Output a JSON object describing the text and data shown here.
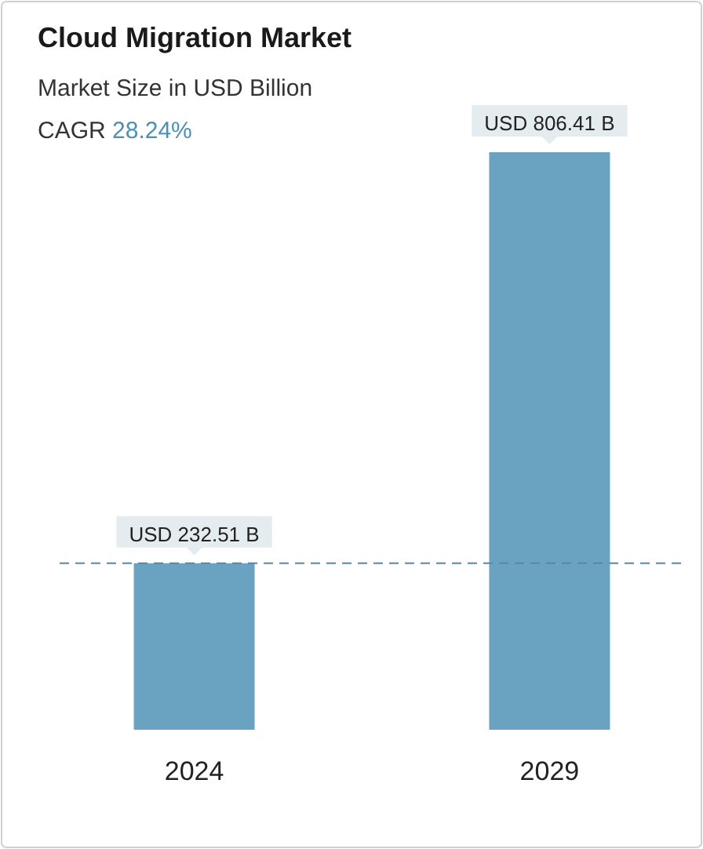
{
  "chart_data": {
    "type": "bar",
    "title": "Cloud Migration Market",
    "subtitle": "Market Size in USD Billion",
    "annotations": [
      "CAGR 28.24%"
    ],
    "categories": [
      "2024",
      "2029"
    ],
    "values": [
      232.51,
      806.41
    ],
    "value_labels": [
      "USD 232.51 B",
      "USD 806.41 B"
    ],
    "color": "#6aa3c2",
    "ref_lines": [
      {
        "axis": "y",
        "value": 232.51,
        "color": "#5b86a8",
        "line_style": "dashed"
      }
    ]
  }
}
